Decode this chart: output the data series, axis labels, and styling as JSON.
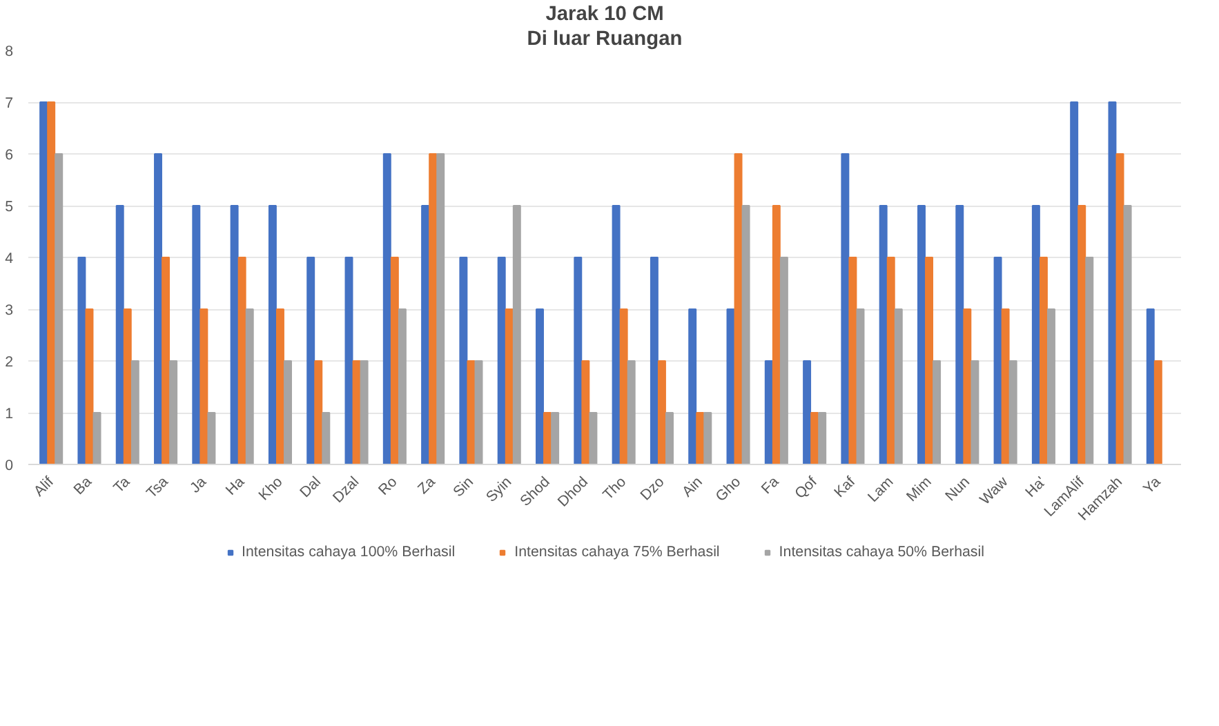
{
  "chart_data": {
    "type": "bar",
    "title": "Jarak 10 CM",
    "subtitle": "Di luar Ruangan",
    "categories": [
      "Alif",
      "Ba",
      "Ta",
      "Tsa",
      "Ja",
      "Ha",
      "Kho",
      "Dal",
      "Dzal",
      "Ro",
      "Za",
      "Sin",
      "Syin",
      "Shod",
      "Dhod",
      "Tho",
      "Dzo",
      "Ain",
      "Gho",
      "Fa",
      "Qof",
      "Kaf",
      "Lam",
      "Mim",
      "Nun",
      "Waw",
      "Ha'",
      "LamAlif",
      "Hamzah",
      "Ya"
    ],
    "series": [
      {
        "name": "Intensitas cahaya 100% Berhasil",
        "color": "#4472c4",
        "values": [
          7,
          4,
          5,
          6,
          5,
          5,
          5,
          4,
          4,
          6,
          5,
          4,
          4,
          3,
          4,
          5,
          4,
          3,
          3,
          2,
          2,
          6,
          5,
          5,
          5,
          4,
          5,
          7,
          7,
          3
        ]
      },
      {
        "name": "Intensitas cahaya 75% Berhasil",
        "color": "#ed7d31",
        "values": [
          7,
          3,
          3,
          4,
          3,
          4,
          3,
          2,
          2,
          4,
          6,
          2,
          3,
          1,
          2,
          3,
          2,
          1,
          6,
          5,
          1,
          4,
          4,
          4,
          3,
          3,
          4,
          5,
          6,
          2
        ]
      },
      {
        "name": "Intensitas cahaya 50% Berhasil",
        "color": "#a5a5a5",
        "values": [
          6,
          1,
          2,
          2,
          1,
          3,
          2,
          1,
          2,
          3,
          6,
          2,
          5,
          1,
          1,
          2,
          1,
          1,
          5,
          4,
          1,
          3,
          3,
          2,
          2,
          2,
          3,
          4,
          5,
          null
        ]
      }
    ],
    "ylim": [
      0,
      8
    ],
    "yticks": [
      0,
      1,
      2,
      3,
      4,
      5,
      6,
      7,
      8
    ],
    "grid": "y",
    "legend": "bottom"
  }
}
